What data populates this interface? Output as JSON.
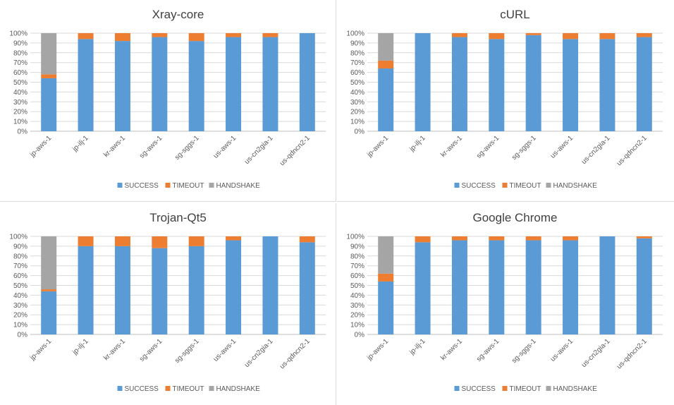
{
  "colors": {
    "SUCCESS": "#5B9BD5",
    "TIMEOUT": "#ED7D31",
    "HANDSHAKE": "#A5A5A5",
    "grid": "#d9d9d9",
    "axis": "#bfbfbf"
  },
  "chart_data": [
    {
      "type": "bar",
      "stacked": true,
      "title": "Xray-core",
      "categories": [
        "jp-aws-1",
        "jp-ilj-1",
        "kr-aws-1",
        "sg-aws-1",
        "sg-sggs-1",
        "us-aws-1",
        "us-cn2gia-1",
        "us-qdncn2-1"
      ],
      "series": [
        {
          "name": "SUCCESS",
          "values": [
            54,
            94,
            92,
            96,
            92,
            96,
            96,
            100
          ]
        },
        {
          "name": "TIMEOUT",
          "values": [
            4,
            6,
            8,
            4,
            8,
            4,
            4,
            0
          ]
        },
        {
          "name": "HANDSHAKE",
          "values": [
            42,
            0,
            0,
            0,
            0,
            0,
            0,
            0
          ]
        }
      ],
      "yticks": [
        "0%",
        "10%",
        "20%",
        "30%",
        "40%",
        "50%",
        "60%",
        "70%",
        "80%",
        "90%",
        "100%"
      ],
      "ylim": [
        0,
        100
      ],
      "legend": "bottom"
    },
    {
      "type": "bar",
      "stacked": true,
      "title": "cURL",
      "categories": [
        "jp-aws-1",
        "jp-ilj-1",
        "kr-aws-1",
        "sg-aws-1",
        "sg-sggs-1",
        "us-aws-1",
        "us-cn2gia-1",
        "us-qdncn2-1"
      ],
      "series": [
        {
          "name": "SUCCESS",
          "values": [
            64,
            100,
            96,
            94,
            98,
            94,
            94,
            96
          ]
        },
        {
          "name": "TIMEOUT",
          "values": [
            8,
            0,
            4,
            6,
            2,
            6,
            6,
            4
          ]
        },
        {
          "name": "HANDSHAKE",
          "values": [
            28,
            0,
            0,
            0,
            0,
            0,
            0,
            0
          ]
        }
      ],
      "yticks": [
        "0%",
        "10%",
        "20%",
        "30%",
        "40%",
        "50%",
        "60%",
        "70%",
        "80%",
        "90%",
        "100%"
      ],
      "ylim": [
        0,
        100
      ],
      "legend": "bottom"
    },
    {
      "type": "bar",
      "stacked": true,
      "title": "Trojan-Qt5",
      "categories": [
        "jp-aws-1",
        "jp-ilj-1",
        "kr-aws-1",
        "sg-aws-1",
        "sg-sggs-1",
        "us-aws-1",
        "us-cn2gia-1",
        "us-qdncn2-1"
      ],
      "series": [
        {
          "name": "SUCCESS",
          "values": [
            44,
            90,
            90,
            88,
            90,
            96,
            100,
            94
          ]
        },
        {
          "name": "TIMEOUT",
          "values": [
            2,
            10,
            10,
            12,
            10,
            4,
            0,
            6
          ]
        },
        {
          "name": "HANDSHAKE",
          "values": [
            54,
            0,
            0,
            0,
            0,
            0,
            0,
            0
          ]
        }
      ],
      "yticks": [
        "0%",
        "10%",
        "20%",
        "30%",
        "40%",
        "50%",
        "60%",
        "70%",
        "80%",
        "90%",
        "100%"
      ],
      "ylim": [
        0,
        100
      ],
      "legend": "bottom"
    },
    {
      "type": "bar",
      "stacked": true,
      "title": "Google Chrome",
      "categories": [
        "jp-aws-1",
        "jp-ilj-1",
        "kr-aws-1",
        "sg-aws-1",
        "sg-sggs-1",
        "us-aws-1",
        "us-cn2gia-1",
        "us-qdncn2-1"
      ],
      "series": [
        {
          "name": "SUCCESS",
          "values": [
            54,
            94,
            96,
            96,
            96,
            96,
            100,
            98
          ]
        },
        {
          "name": "TIMEOUT",
          "values": [
            8,
            6,
            4,
            4,
            4,
            4,
            0,
            2
          ]
        },
        {
          "name": "HANDSHAKE",
          "values": [
            38,
            0,
            0,
            0,
            0,
            0,
            0,
            0
          ]
        }
      ],
      "yticks": [
        "0%",
        "10%",
        "20%",
        "30%",
        "40%",
        "50%",
        "60%",
        "70%",
        "80%",
        "90%",
        "100%"
      ],
      "ylim": [
        0,
        100
      ],
      "legend": "bottom"
    }
  ]
}
